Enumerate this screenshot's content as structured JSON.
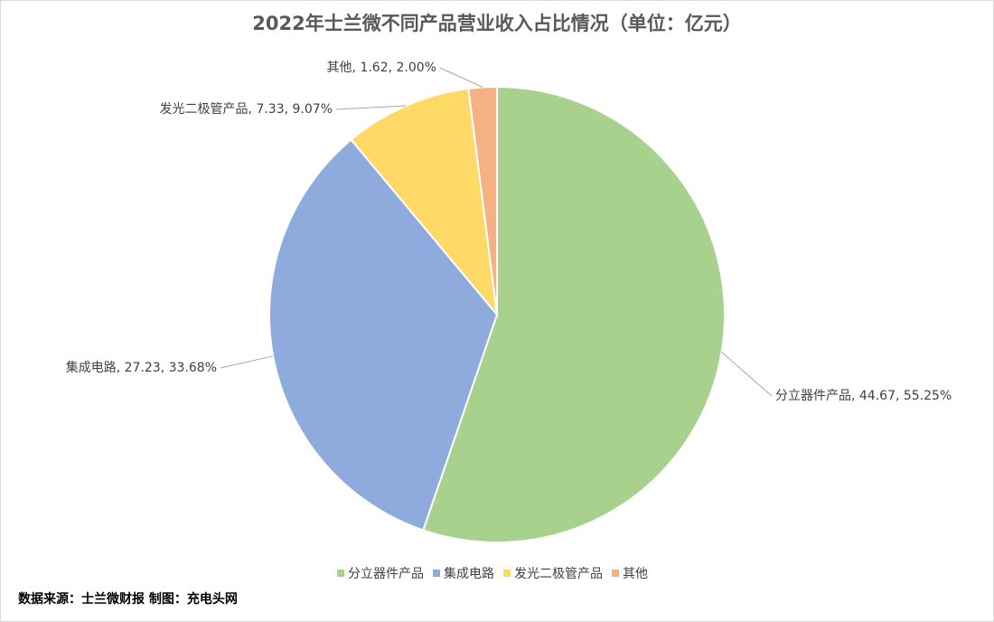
{
  "chart_data": {
    "type": "pie",
    "title": "2022年士兰微不同产品营业收入占比情况（单位：亿元）",
    "categories": [
      "分立器件产品",
      "集成电路",
      "发光二极管产品",
      "其他"
    ],
    "values": [
      44.67,
      27.23,
      7.33,
      1.62
    ],
    "value_labels": [
      "分立器件产品, 44.67, 55.25%",
      "集成电路, 27.23, 33.68%",
      "发光二极管产品, 7.33, 9.07%",
      "其他, 1.62, 2.00%"
    ],
    "colors": [
      "#a9d18e",
      "#8faadc",
      "#ffd966",
      "#f4b183"
    ],
    "legend": "bottom",
    "source": "数据来源：士兰微财报  制图：充电头网"
  }
}
